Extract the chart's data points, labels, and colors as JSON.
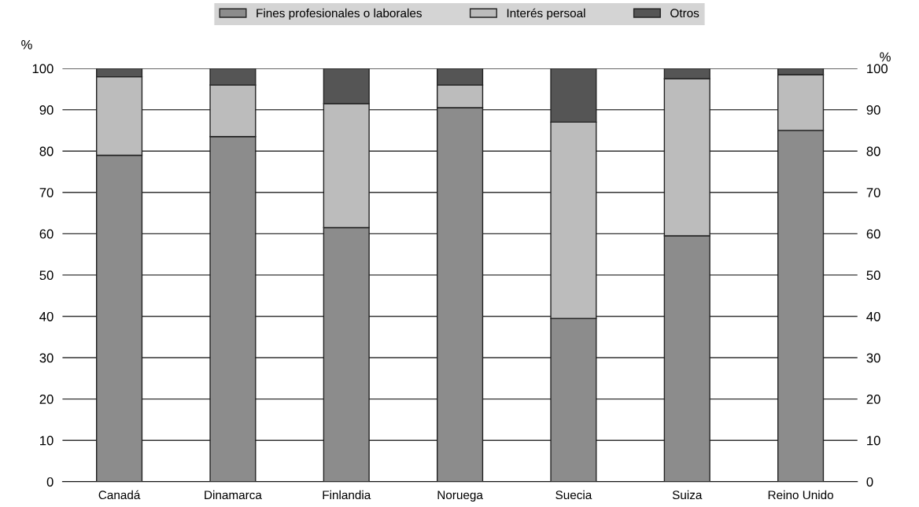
{
  "chart_data": {
    "type": "bar",
    "stacked": true,
    "categories": [
      "Canadá",
      "Dinamarca",
      "Finlandia",
      "Noruega",
      "Suecia",
      "Suiza",
      "Reino Unido"
    ],
    "series": [
      {
        "name": "Fines profesionales o laborales",
        "color": "#8c8c8c",
        "values": [
          79,
          83.5,
          61.5,
          90.5,
          39.5,
          59.5,
          85
        ]
      },
      {
        "name": "Interés persoal",
        "color": "#bcbcbc",
        "values": [
          19,
          12.5,
          30,
          5.5,
          47.5,
          38,
          13.5
        ]
      },
      {
        "name": "Otros",
        "color": "#555555",
        "values": [
          2,
          4,
          8.5,
          4,
          13,
          2.5,
          1.5
        ]
      }
    ],
    "ylabel": "%",
    "y2label": "%",
    "ylim": [
      0,
      100
    ],
    "yticks": [
      0,
      10,
      20,
      30,
      40,
      50,
      60,
      70,
      80,
      90,
      100
    ],
    "y2lim": [
      0,
      100
    ],
    "y2ticks": [
      0,
      10,
      20,
      30,
      40,
      50,
      60,
      70,
      80,
      90,
      100
    ],
    "grid": "y",
    "legend": "top"
  }
}
